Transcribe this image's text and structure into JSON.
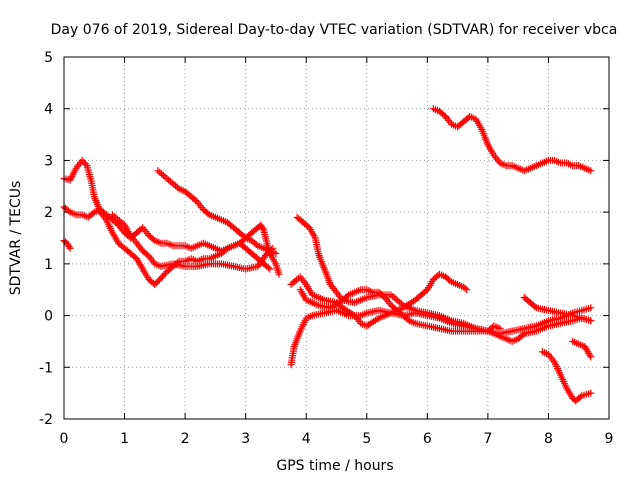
{
  "chart_data": {
    "type": "scatter",
    "title": "Day 076 of 2019, Sidereal Day-to-day VTEC variation (SDTVAR) for receiver vbca",
    "xlabel": "GPS time / hours",
    "ylabel": "SDTVAR / TECUs",
    "xlim": [
      0,
      9
    ],
    "ylim": [
      -2,
      5
    ],
    "xticks": [
      "0",
      "1",
      "2",
      "3",
      "4",
      "5",
      "6",
      "7",
      "8",
      "9"
    ],
    "yticks": [
      "-2",
      "-1",
      "0",
      "1",
      "2",
      "3",
      "4",
      "5"
    ],
    "grid": true,
    "marker": "plus",
    "color": "#ff0000",
    "series": [
      {
        "name": "trace-1",
        "points": [
          [
            0,
            2.65
          ],
          [
            0.1,
            2.62
          ],
          [
            0.2,
            2.85
          ],
          [
            0.3,
            3.0
          ],
          [
            0.38,
            2.9
          ],
          [
            0.45,
            2.6
          ],
          [
            0.5,
            2.3
          ],
          [
            0.6,
            2.0
          ],
          [
            0.7,
            1.85
          ],
          [
            0.8,
            1.6
          ],
          [
            0.9,
            1.4
          ],
          [
            1.0,
            1.3
          ],
          [
            1.1,
            1.2
          ],
          [
            1.2,
            1.1
          ],
          [
            1.3,
            0.9
          ],
          [
            1.4,
            0.7
          ],
          [
            1.5,
            0.6
          ],
          [
            1.6,
            0.72
          ],
          [
            1.7,
            0.85
          ],
          [
            1.8,
            0.95
          ],
          [
            1.9,
            1.05
          ],
          [
            2.0,
            1.05
          ],
          [
            2.1,
            1.1
          ],
          [
            2.2,
            1.05
          ],
          [
            2.3,
            1.1
          ],
          [
            2.4,
            1.1
          ],
          [
            2.5,
            1.15
          ],
          [
            2.6,
            1.2
          ],
          [
            2.7,
            1.3
          ],
          [
            2.8,
            1.35
          ],
          [
            2.9,
            1.4
          ],
          [
            3.0,
            1.5
          ],
          [
            3.1,
            1.6
          ],
          [
            3.2,
            1.7
          ],
          [
            3.25,
            1.75
          ],
          [
            3.3,
            1.65
          ],
          [
            3.35,
            1.4
          ],
          [
            3.4,
            1.2
          ],
          [
            3.5,
            1.0
          ],
          [
            3.55,
            0.8
          ]
        ]
      },
      {
        "name": "trace-2",
        "points": [
          [
            0,
            2.1
          ],
          [
            0.1,
            2.0
          ],
          [
            0.2,
            1.95
          ],
          [
            0.3,
            1.95
          ],
          [
            0.4,
            1.9
          ],
          [
            0.5,
            2.0
          ],
          [
            0.6,
            2.05
          ],
          [
            0.7,
            1.95
          ],
          [
            0.8,
            1.85
          ],
          [
            0.9,
            1.75
          ],
          [
            1.0,
            1.6
          ],
          [
            1.1,
            1.5
          ],
          [
            1.2,
            1.6
          ],
          [
            1.3,
            1.7
          ],
          [
            1.4,
            1.55
          ],
          [
            1.5,
            1.45
          ],
          [
            1.6,
            1.4
          ],
          [
            1.7,
            1.4
          ],
          [
            1.8,
            1.35
          ],
          [
            1.9,
            1.35
          ],
          [
            2.0,
            1.35
          ],
          [
            2.1,
            1.3
          ],
          [
            2.2,
            1.35
          ],
          [
            2.3,
            1.4
          ],
          [
            2.4,
            1.35
          ],
          [
            2.5,
            1.3
          ],
          [
            2.6,
            1.25
          ],
          [
            2.7,
            1.3
          ],
          [
            2.8,
            1.35
          ],
          [
            2.9,
            1.4
          ],
          [
            3.0,
            1.3
          ],
          [
            3.1,
            1.2
          ],
          [
            3.2,
            1.1
          ],
          [
            3.3,
            1.0
          ],
          [
            3.4,
            0.9
          ]
        ]
      },
      {
        "name": "trace-3",
        "points": [
          [
            0,
            1.45
          ],
          [
            0.05,
            1.4
          ],
          [
            0.1,
            1.3
          ]
        ]
      },
      {
        "name": "trace-4",
        "points": [
          [
            1.55,
            2.8
          ],
          [
            1.7,
            2.65
          ],
          [
            1.9,
            2.45
          ],
          [
            2.0,
            2.4
          ],
          [
            2.1,
            2.3
          ],
          [
            2.2,
            2.2
          ],
          [
            2.3,
            2.05
          ],
          [
            2.4,
            1.95
          ],
          [
            2.5,
            1.9
          ],
          [
            2.6,
            1.85
          ],
          [
            2.7,
            1.8
          ],
          [
            2.8,
            1.7
          ],
          [
            2.9,
            1.6
          ],
          [
            3.0,
            1.5
          ],
          [
            3.1,
            1.45
          ],
          [
            3.2,
            1.35
          ],
          [
            3.3,
            1.3
          ],
          [
            3.4,
            1.25
          ],
          [
            3.5,
            1.2
          ]
        ]
      },
      {
        "name": "trace-5",
        "points": [
          [
            0.8,
            1.95
          ],
          [
            1.0,
            1.75
          ],
          [
            1.1,
            1.55
          ],
          [
            1.2,
            1.4
          ],
          [
            1.3,
            1.25
          ],
          [
            1.4,
            1.15
          ],
          [
            1.5,
            1.0
          ],
          [
            1.6,
            0.95
          ],
          [
            1.8,
            1.0
          ],
          [
            2.0,
            0.95
          ],
          [
            2.2,
            0.95
          ],
          [
            2.4,
            1.0
          ],
          [
            2.6,
            1.0
          ],
          [
            2.8,
            0.95
          ],
          [
            3.0,
            0.9
          ],
          [
            3.2,
            0.95
          ],
          [
            3.35,
            1.2
          ],
          [
            3.45,
            1.3
          ]
        ]
      },
      {
        "name": "trace-6",
        "points": [
          [
            3.75,
            -0.95
          ],
          [
            3.8,
            -0.6
          ],
          [
            3.9,
            -0.3
          ],
          [
            4.0,
            -0.05
          ],
          [
            4.1,
            0.0
          ],
          [
            4.3,
            0.05
          ],
          [
            4.5,
            0.1
          ],
          [
            4.7,
            0.0
          ],
          [
            4.9,
            0.0
          ],
          [
            5.0,
            0.05
          ],
          [
            5.2,
            0.1
          ],
          [
            5.4,
            0.05
          ],
          [
            5.6,
            0.0
          ],
          [
            5.8,
            0.05
          ],
          [
            6.0,
            0.0
          ],
          [
            6.2,
            -0.05
          ],
          [
            6.4,
            -0.15
          ],
          [
            6.6,
            -0.2
          ],
          [
            6.8,
            -0.25
          ],
          [
            7.0,
            -0.3
          ],
          [
            7.2,
            -0.35
          ],
          [
            7.4,
            -0.3
          ],
          [
            7.6,
            -0.25
          ],
          [
            7.8,
            -0.2
          ],
          [
            8.0,
            -0.1
          ],
          [
            8.2,
            -0.05
          ],
          [
            8.4,
            0.05
          ],
          [
            8.55,
            0.1
          ],
          [
            8.7,
            0.15
          ]
        ]
      },
      {
        "name": "trace-7",
        "points": [
          [
            3.75,
            0.6
          ],
          [
            3.9,
            0.75
          ],
          [
            4.0,
            0.6
          ],
          [
            4.1,
            0.4
          ],
          [
            4.3,
            0.3
          ],
          [
            4.5,
            0.25
          ],
          [
            4.6,
            0.15
          ],
          [
            4.8,
            0.0
          ],
          [
            4.9,
            -0.15
          ],
          [
            5.0,
            -0.2
          ],
          [
            5.2,
            -0.05
          ],
          [
            5.4,
            0.05
          ],
          [
            5.6,
            0.15
          ],
          [
            5.8,
            0.3
          ],
          [
            5.9,
            0.4
          ],
          [
            6.0,
            0.5
          ],
          [
            6.1,
            0.7
          ],
          [
            6.2,
            0.8
          ],
          [
            6.3,
            0.75
          ],
          [
            6.4,
            0.65
          ],
          [
            6.5,
            0.6
          ],
          [
            6.6,
            0.55
          ],
          [
            6.65,
            0.5
          ]
        ]
      },
      {
        "name": "trace-8",
        "points": [
          [
            3.85,
            1.9
          ],
          [
            3.95,
            1.8
          ],
          [
            4.05,
            1.7
          ],
          [
            4.15,
            1.5
          ],
          [
            4.2,
            1.2
          ],
          [
            4.3,
            0.9
          ],
          [
            4.4,
            0.6
          ],
          [
            4.5,
            0.45
          ],
          [
            4.6,
            0.3
          ],
          [
            4.7,
            0.4
          ],
          [
            4.8,
            0.45
          ],
          [
            4.9,
            0.5
          ],
          [
            5.0,
            0.5
          ],
          [
            5.1,
            0.45
          ],
          [
            5.2,
            0.45
          ],
          [
            5.3,
            0.35
          ],
          [
            5.4,
            0.2
          ],
          [
            5.5,
            0.1
          ],
          [
            5.6,
            0.0
          ],
          [
            5.7,
            -0.1
          ],
          [
            5.8,
            -0.15
          ],
          [
            6.0,
            -0.2
          ],
          [
            6.2,
            -0.25
          ],
          [
            6.4,
            -0.3
          ],
          [
            6.6,
            -0.3
          ],
          [
            6.8,
            -0.3
          ],
          [
            7.0,
            -0.3
          ],
          [
            7.2,
            -0.4
          ],
          [
            7.4,
            -0.5
          ],
          [
            7.5,
            -0.45
          ],
          [
            7.6,
            -0.35
          ],
          [
            7.8,
            -0.3
          ],
          [
            8.0,
            -0.2
          ],
          [
            8.2,
            -0.15
          ],
          [
            8.4,
            -0.1
          ],
          [
            8.55,
            -0.05
          ],
          [
            8.7,
            -0.1
          ]
        ]
      },
      {
        "name": "trace-9",
        "points": [
          [
            3.9,
            0.5
          ],
          [
            4.0,
            0.3
          ],
          [
            4.2,
            0.2
          ],
          [
            4.4,
            0.15
          ],
          [
            4.6,
            0.3
          ],
          [
            4.8,
            0.25
          ],
          [
            5.0,
            0.35
          ],
          [
            5.2,
            0.4
          ],
          [
            5.4,
            0.4
          ],
          [
            5.6,
            0.2
          ],
          [
            5.8,
            0.1
          ],
          [
            6.0,
            0.05
          ],
          [
            6.2,
            0.0
          ],
          [
            6.4,
            -0.1
          ],
          [
            6.6,
            -0.15
          ],
          [
            6.8,
            -0.25
          ],
          [
            7.0,
            -0.3
          ],
          [
            7.1,
            -0.2
          ],
          [
            7.2,
            -0.25
          ]
        ]
      },
      {
        "name": "trace-10",
        "points": [
          [
            6.1,
            4.0
          ],
          [
            6.2,
            3.95
          ],
          [
            6.3,
            3.85
          ],
          [
            6.4,
            3.7
          ],
          [
            6.5,
            3.65
          ],
          [
            6.6,
            3.75
          ],
          [
            6.7,
            3.85
          ],
          [
            6.8,
            3.8
          ],
          [
            6.9,
            3.6
          ],
          [
            7.0,
            3.3
          ],
          [
            7.1,
            3.1
          ],
          [
            7.2,
            2.95
          ],
          [
            7.3,
            2.9
          ],
          [
            7.4,
            2.9
          ],
          [
            7.5,
            2.85
          ],
          [
            7.6,
            2.8
          ],
          [
            7.7,
            2.85
          ],
          [
            7.8,
            2.9
          ],
          [
            7.9,
            2.95
          ],
          [
            8.0,
            3.0
          ],
          [
            8.1,
            3.0
          ],
          [
            8.2,
            2.95
          ],
          [
            8.3,
            2.95
          ],
          [
            8.4,
            2.9
          ],
          [
            8.5,
            2.9
          ],
          [
            8.6,
            2.85
          ],
          [
            8.7,
            2.8
          ]
        ]
      },
      {
        "name": "trace-11",
        "points": [
          [
            7.6,
            0.35
          ],
          [
            7.7,
            0.25
          ],
          [
            7.8,
            0.15
          ],
          [
            8.0,
            0.1
          ],
          [
            8.2,
            0.05
          ],
          [
            8.4,
            0.0
          ],
          [
            8.55,
            -0.05
          ],
          [
            8.7,
            -0.1
          ]
        ]
      },
      {
        "name": "trace-12",
        "points": [
          [
            7.9,
            -0.7
          ],
          [
            8.0,
            -0.75
          ],
          [
            8.1,
            -0.9
          ],
          [
            8.2,
            -1.15
          ],
          [
            8.3,
            -1.4
          ],
          [
            8.4,
            -1.6
          ],
          [
            8.45,
            -1.65
          ],
          [
            8.55,
            -1.55
          ],
          [
            8.7,
            -1.5
          ]
        ]
      },
      {
        "name": "trace-13",
        "points": [
          [
            8.4,
            -0.5
          ],
          [
            8.5,
            -0.55
          ],
          [
            8.6,
            -0.6
          ],
          [
            8.65,
            -0.7
          ],
          [
            8.7,
            -0.8
          ]
        ]
      }
    ]
  }
}
